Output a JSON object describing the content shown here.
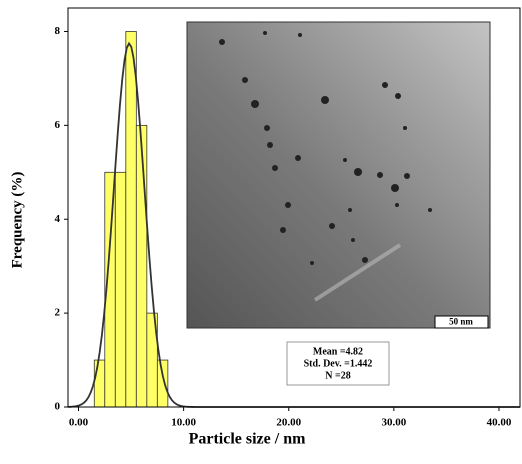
{
  "chart_data": {
    "type": "histogram",
    "xlabel": "Particle size / nm",
    "ylabel": "Frequency (%)",
    "bins": [
      1.5,
      2.5,
      3.5,
      4.5,
      5.5,
      6.5,
      7.5,
      8.5
    ],
    "counts": [
      1,
      5,
      5,
      8,
      6,
      2,
      1
    ],
    "color": "#ffff66",
    "xlim": [
      -1,
      42
    ],
    "xticks": [
      {
        "value": 0,
        "label": "0.00"
      },
      {
        "value": 10,
        "label": "10.00"
      },
      {
        "value": 20,
        "label": "20.00"
      },
      {
        "value": 30,
        "label": "30.00"
      },
      {
        "value": 40,
        "label": "40.00"
      }
    ],
    "ylim": [
      0,
      8.5
    ],
    "yticks": [
      0,
      2,
      4,
      6,
      8
    ],
    "fit": "normal",
    "stats": [
      {
        "value": 4.82,
        "label": "Mean =4.82"
      },
      {
        "value": 1.442,
        "label": "Std. Dev. =1.442"
      },
      {
        "value": 28,
        "label": "N =28"
      }
    ],
    "inset_scale_label": "50 nm"
  }
}
